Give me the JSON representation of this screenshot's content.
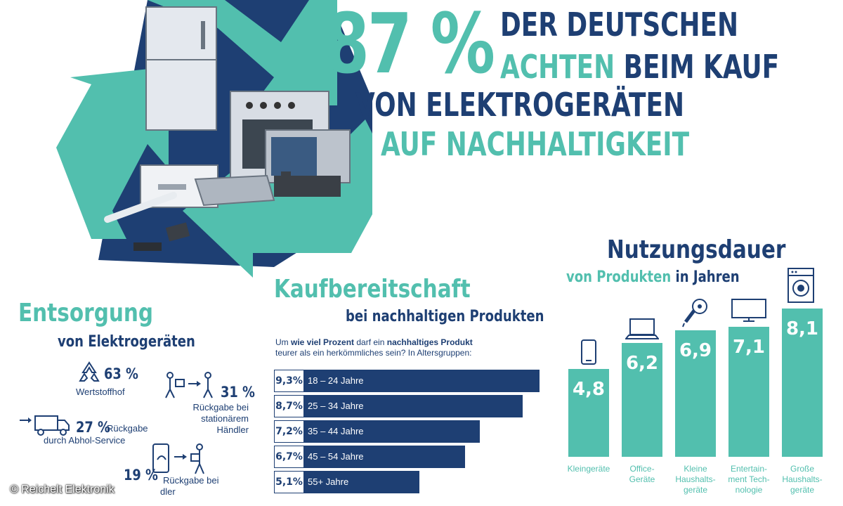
{
  "colors": {
    "navy": "#1e3f73",
    "teal": "#52bfae"
  },
  "headline": {
    "percent": "87 %",
    "line1": "DER DEUTSCHEN",
    "line2_highlight": "ACHTEN",
    "line2_rest": "BEIM KAUF",
    "line3": "VON ELEKTROGERÄTEN",
    "line4": "AUF NACHHALTIGKEIT"
  },
  "illustration": {
    "icon": "recycling-symbol-with-appliances"
  },
  "disposal": {
    "title": "Entsorgung",
    "subtitle": "von Elektrogeräten",
    "items": [
      {
        "percent": "63 %",
        "label": "Wertstoffhof",
        "icon": "recycle-icon"
      },
      {
        "percent": "31 %",
        "label": "Rückgabe bei stationärem Händler",
        "icon": "handover-icon"
      },
      {
        "percent": "27 %",
        "label_inline": "Rückgabe",
        "label_below": "durch Abhol-Service",
        "icon": "delivery-truck-icon"
      },
      {
        "percent": "19 %",
        "label_inline": "Rückgabe bei",
        "label_below": "dler",
        "icon": "online-return-icon"
      }
    ]
  },
  "willingness": {
    "title": "Kaufbereitschaft",
    "subtitle": "bei nachhaltigen Produkten",
    "note_pre": "Um ",
    "note_bold1": "wie viel Prozent",
    "note_mid": " darf ein ",
    "note_bold2": "nachhaltiges Produkt",
    "note_post": " teurer als ein herkömmliches sein? In Altersgruppen:"
  },
  "usage": {
    "title": "Nutzungsdauer",
    "subtitle_part1": "von Produkten",
    "subtitle_part2": "in Jahren"
  },
  "chart_data": [
    {
      "type": "bar",
      "orientation": "horizontal",
      "title": "Kaufbereitschaft",
      "subtitle": "bei nachhaltigen Produkten",
      "categories": [
        "18 – 24 Jahre",
        "25 – 34 Jahre",
        "35 – 44 Jahre",
        "45 – 54 Jahre",
        "55+ Jahre"
      ],
      "values": [
        9.3,
        8.7,
        7.2,
        6.7,
        5.1
      ],
      "value_labels": [
        "9,3%",
        "8,7%",
        "7,2%",
        "6,7%",
        "5,1%"
      ],
      "grid": false
    },
    {
      "type": "bar",
      "orientation": "vertical",
      "title": "Nutzungsdauer",
      "subtitle": "von Produkten in Jahren",
      "categories": [
        "Kleingeräte",
        "Office-Geräte",
        "Kleine Haushalts-geräte",
        "Entertain-ment Tech-nologie",
        "Große Haushalts-geräte"
      ],
      "category_lines": [
        [
          "Kleingeräte"
        ],
        [
          "Office-",
          "Geräte"
        ],
        [
          "Kleine",
          "Haushalts-",
          "geräte"
        ],
        [
          "Entertain-",
          "ment Tech-",
          "nologie"
        ],
        [
          "Große",
          "Haushalts-",
          "geräte"
        ]
      ],
      "values": [
        4.8,
        6.2,
        6.9,
        7.1,
        8.1
      ],
      "value_labels": [
        "4,8",
        "6,2",
        "6,9",
        "7,1",
        "8,1"
      ],
      "icons": [
        "smartphone-icon",
        "laptop-icon",
        "hairdryer-icon",
        "tv-icon",
        "washing-machine-icon"
      ],
      "grid": false
    }
  ],
  "footer": {
    "copyright": "© Reichelt Elektronik"
  }
}
